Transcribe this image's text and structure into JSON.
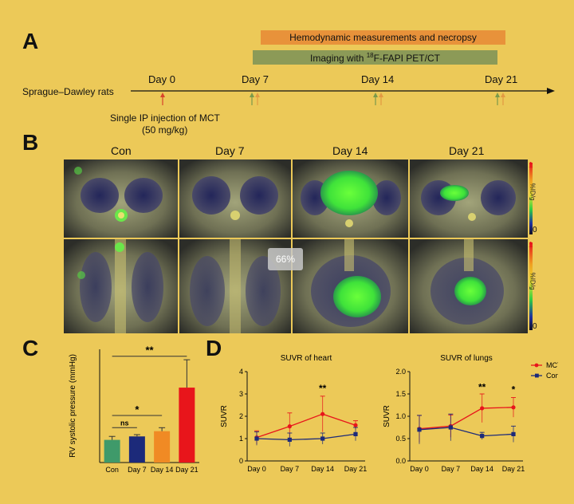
{
  "labels": {
    "A": "A",
    "B": "B",
    "C": "C",
    "D": "D"
  },
  "timeline": {
    "bar_hemo": "Hemodynamic measurements and necropsy",
    "bar_imaging_pre": "Imaging with ",
    "bar_imaging_sup": "18",
    "bar_imaging_post": "F-FAPI PET/CT",
    "subject": "Sprague–Dawley rats",
    "days": [
      "Day 0",
      "Day 7",
      "Day 14",
      "Day 21"
    ],
    "injection_line1": "Single IP injection of MCT",
    "injection_line2": "(50 mg/kg)",
    "colors": {
      "hemo": "#e8923a",
      "imaging": "#8c9a57",
      "arrow_red": "#d9442b",
      "arrow_green": "#7a9a4a",
      "arrow_orange": "#e39a42"
    }
  },
  "panelB": {
    "columns": [
      "Con",
      "Day 7",
      "Day 14",
      "Day 21"
    ],
    "colorbar": {
      "max": "1",
      "unit": "%ID/g",
      "min": "0"
    },
    "zoom_overlay": "66%"
  },
  "chart_data": [
    {
      "type": "bar",
      "ylabel": "RV systolic pressure (mmHg)",
      "categories": [
        "Con",
        "Day 7",
        "Day 14",
        "Day 21"
      ],
      "values": [
        26,
        30,
        36,
        86
      ],
      "errors": [
        4,
        2,
        4,
        32
      ],
      "colors": [
        "#3f9a6a",
        "#1c2a7a",
        "#f08a24",
        "#e8151b"
      ],
      "ylim": [
        0,
        130
      ],
      "annotations": [
        {
          "text": "ns"
        },
        {
          "text": "*"
        },
        {
          "text": "**"
        }
      ]
    },
    {
      "type": "line",
      "title": "SUVR of heart",
      "xlabel": "",
      "ylabel": "SUVR",
      "categories": [
        "Day 0",
        "Day 7",
        "Day 14",
        "Day 21"
      ],
      "ylim": [
        0,
        4
      ],
      "yticks": [
        "0",
        "1",
        "2",
        "3",
        "4"
      ],
      "series": [
        {
          "name": "MCT",
          "color": "#e8151b",
          "values": [
            1.05,
            1.55,
            2.1,
            1.6
          ],
          "errors": [
            0.3,
            0.6,
            0.8,
            0.2
          ]
        },
        {
          "name": "Con",
          "color": "#1c2a7a",
          "values": [
            1.0,
            0.95,
            1.0,
            1.2
          ],
          "errors": [
            0.3,
            0.3,
            0.25,
            0.3
          ]
        }
      ],
      "annotations": [
        {
          "text": "**"
        }
      ]
    },
    {
      "type": "line",
      "title": "SUVR of lungs",
      "xlabel": "",
      "ylabel": "SUVR",
      "categories": [
        "Day 0",
        "Day 7",
        "Day 14",
        "Day 21"
      ],
      "ylim": [
        0,
        2.0
      ],
      "yticks": [
        "0.0",
        "0.5",
        "1.0",
        "1.5",
        "2.0"
      ],
      "series": [
        {
          "name": "MCT",
          "color": "#e8151b",
          "values": [
            0.72,
            0.78,
            1.18,
            1.2
          ],
          "errors": [
            0.3,
            0.25,
            0.32,
            0.22
          ]
        },
        {
          "name": "Con",
          "color": "#1c2a7a",
          "values": [
            0.7,
            0.75,
            0.56,
            0.6
          ],
          "errors": [
            0.32,
            0.3,
            0.08,
            0.18
          ]
        }
      ],
      "annotations": [
        {
          "text": "**"
        },
        {
          "text": "*"
        }
      ]
    }
  ]
}
